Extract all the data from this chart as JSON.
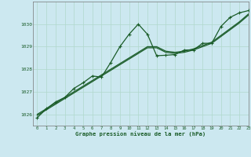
{
  "title": "Graphe pression niveau de la mer (hPa)",
  "background_color": "#cce8f0",
  "plot_background": "#cce8f0",
  "grid_color": "#b0d8cc",
  "line_color": "#1a5c28",
  "xlim": [
    -0.5,
    23
  ],
  "ylim": [
    1025.5,
    1031.0
  ],
  "xticks": [
    0,
    1,
    2,
    3,
    4,
    5,
    6,
    7,
    8,
    9,
    10,
    11,
    12,
    13,
    14,
    15,
    16,
    17,
    18,
    19,
    20,
    21,
    22,
    23
  ],
  "yticks": [
    1026,
    1027,
    1028,
    1029,
    1030
  ],
  "series_smooth1": {
    "x": [
      0,
      1,
      2,
      3,
      4,
      5,
      6,
      7,
      8,
      9,
      10,
      11,
      12,
      13,
      14,
      15,
      16,
      17,
      18,
      19,
      20,
      21,
      22,
      23
    ],
    "y": [
      1026.0,
      1026.25,
      1026.5,
      1026.75,
      1027.0,
      1027.25,
      1027.5,
      1027.75,
      1028.0,
      1028.25,
      1028.5,
      1028.75,
      1029.0,
      1029.0,
      1028.8,
      1028.75,
      1028.8,
      1028.9,
      1029.05,
      1029.2,
      1029.5,
      1029.8,
      1030.1,
      1030.45
    ]
  },
  "series_smooth2": {
    "x": [
      0,
      1,
      2,
      3,
      4,
      5,
      6,
      7,
      8,
      9,
      10,
      11,
      12,
      13,
      14,
      15,
      16,
      17,
      18,
      19,
      20,
      21,
      22,
      23
    ],
    "y": [
      1025.95,
      1026.2,
      1026.45,
      1026.7,
      1026.95,
      1027.2,
      1027.45,
      1027.7,
      1027.95,
      1028.2,
      1028.45,
      1028.7,
      1028.95,
      1028.95,
      1028.75,
      1028.7,
      1028.75,
      1028.85,
      1029.0,
      1029.15,
      1029.45,
      1029.75,
      1030.05,
      1030.4
    ]
  },
  "series_spiky": {
    "x": [
      0,
      1,
      2,
      3,
      4,
      5,
      6,
      7,
      8,
      9,
      10,
      11,
      12,
      13,
      14,
      15,
      16,
      17,
      18,
      19,
      20,
      21,
      22,
      23
    ],
    "y": [
      1025.85,
      1026.25,
      1026.55,
      1026.75,
      1027.15,
      1027.4,
      1027.7,
      1027.65,
      1028.3,
      1029.0,
      1029.55,
      1030.0,
      1029.55,
      1028.6,
      1028.62,
      1028.65,
      1028.85,
      1028.85,
      1029.15,
      1029.15,
      1029.9,
      1030.3,
      1030.5,
      1030.6
    ]
  }
}
